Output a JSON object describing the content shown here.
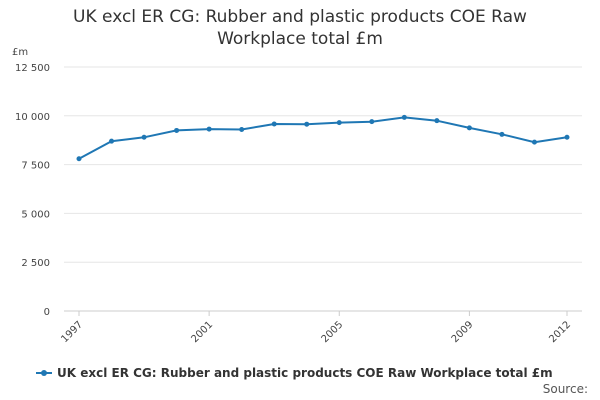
{
  "chart_data": {
    "type": "line",
    "title_lines": [
      "UK excl ER CG: Rubber and plastic products COE Raw",
      "Workplace total £m"
    ],
    "ylabel": "£m",
    "ylim": [
      0,
      12500
    ],
    "yticks": [
      0,
      2500,
      5000,
      7500,
      10000,
      12500
    ],
    "ytick_labels": [
      "0",
      "2 500",
      "5 000",
      "7 500",
      "10 000",
      "12 500"
    ],
    "x": [
      1997,
      1998,
      1999,
      2000,
      2001,
      2002,
      2003,
      2004,
      2005,
      2006,
      2007,
      2008,
      2009,
      2010,
      2011,
      2012
    ],
    "xtick_years": [
      1997,
      2001,
      2005,
      2009,
      2012
    ],
    "xtick_labels": [
      "1997",
      "2001",
      "2005",
      "2009",
      "2012"
    ],
    "series": [
      {
        "name": "UK excl ER CG: Rubber and plastic products COE Raw Workplace total £m",
        "color": "#1f77b4",
        "values": [
          7800,
          8700,
          8900,
          9250,
          9320,
          9300,
          9580,
          9570,
          9650,
          9700,
          9920,
          9750,
          9380,
          9050,
          8650,
          8900
        ]
      }
    ],
    "grid": true,
    "legend_position": "bottom-left",
    "source_label": "Source:"
  }
}
